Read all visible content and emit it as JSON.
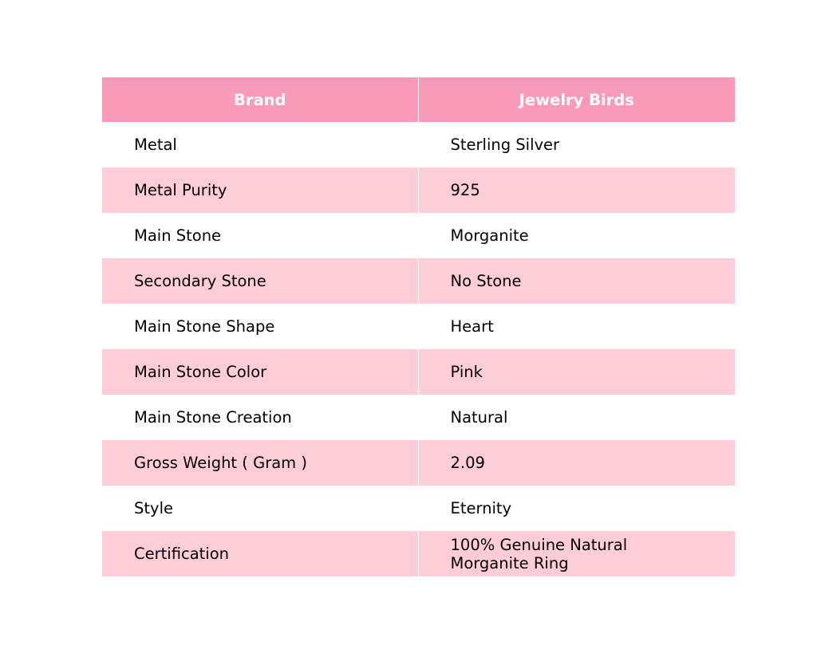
{
  "colors": {
    "header": "#F99BB7",
    "alt_row": "#FECDD8"
  },
  "header": [
    "Brand",
    "Jewelry Birds"
  ],
  "rows": [
    [
      "Metal",
      "Sterling Silver"
    ],
    [
      "Metal Purity",
      "925"
    ],
    [
      "Main Stone",
      "Morganite"
    ],
    [
      "Secondary Stone",
      "No Stone"
    ],
    [
      "Main Stone Shape",
      "Heart"
    ],
    [
      "Main Stone Color",
      "Pink"
    ],
    [
      "Main Stone Creation",
      "Natural"
    ],
    [
      "Gross Weight ( Gram )",
      "2.09"
    ],
    [
      "Style",
      "Eternity"
    ],
    [
      "Certification",
      "100% Genuine Natural Morganite Ring"
    ]
  ]
}
